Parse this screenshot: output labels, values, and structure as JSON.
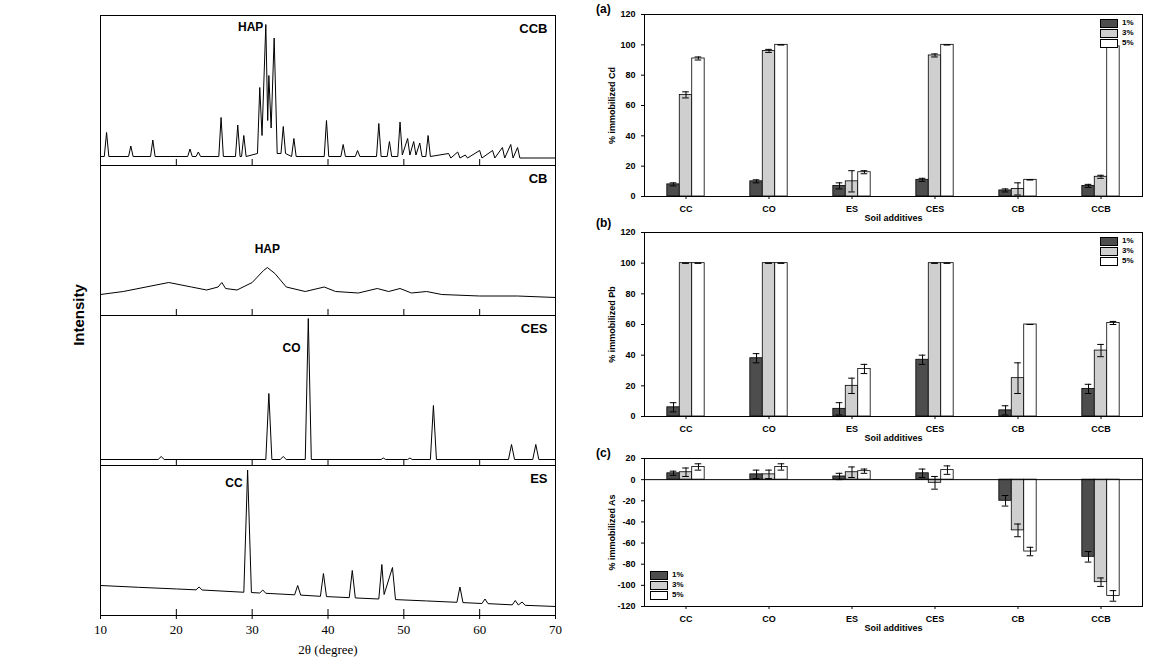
{
  "chart_data": [
    {
      "type": "line",
      "title": "CCB",
      "color": "#000000",
      "x": [
        10,
        10.5,
        10.8,
        11.1,
        13.7,
        14.0,
        14.3,
        16.6,
        16.9,
        17.2,
        21.5,
        21.8,
        22.1,
        22.6,
        22.9,
        23.2,
        25.6,
        25.9,
        26.2,
        27.8,
        28.1,
        28.4,
        28.6,
        28.9,
        29.2,
        30.7,
        31.0,
        31.3,
        31.8,
        32.05,
        32.2,
        32.5,
        32.9,
        33.3,
        33.8,
        34.1,
        34.4,
        35.2,
        35.5,
        35.8,
        39.5,
        39.8,
        40.1,
        41.7,
        42.0,
        42.3,
        43.6,
        43.9,
        44.2,
        46.4,
        46.7,
        47.0,
        47.8,
        48.1,
        48.4,
        49.2,
        49.5,
        49.8,
        50.5,
        50.8,
        51.3,
        51.6,
        52.1,
        52.4,
        52.9,
        53.2,
        53.5,
        55.9,
        56.2,
        57.1,
        57.4,
        58.1,
        58.4,
        60.0,
        60.3,
        61.7,
        62.0,
        63.0,
        63.3,
        64.1,
        64.4,
        65.0,
        65.3,
        70
      ],
      "values": [
        6,
        6,
        22,
        6,
        6,
        13,
        6,
        6,
        17,
        6,
        6,
        11,
        6,
        6,
        9,
        6,
        6,
        32,
        6,
        6,
        27,
        6,
        6,
        20,
        6,
        8,
        52,
        20,
        94,
        30,
        60,
        25,
        85,
        8,
        8,
        26,
        8,
        6,
        18,
        6,
        6,
        30,
        6,
        6,
        14,
        6,
        6,
        10,
        6,
        6,
        28,
        6,
        6,
        16,
        6,
        6,
        29,
        7,
        18,
        7,
        16,
        7,
        15,
        6,
        6,
        20,
        6,
        8,
        5,
        9,
        5,
        7,
        5,
        10,
        5,
        10,
        5,
        12,
        5,
        14,
        5,
        12,
        5,
        5
      ],
      "xlim": [
        10,
        70
      ],
      "ylim": [
        0,
        100
      ],
      "xticks": [
        10,
        20,
        30,
        40,
        50,
        60,
        70
      ],
      "tick_labels": false,
      "annotations": [
        {
          "text": "HAP",
          "x": 29.8,
          "y": 92
        }
      ]
    },
    {
      "type": "line",
      "title": "CB",
      "color": "#000000",
      "x": [
        10,
        13,
        16,
        19,
        22,
        24,
        25.5,
        26,
        26.5,
        28,
        30,
        31.5,
        32,
        33,
        34.5,
        37,
        39.5,
        41,
        44,
        46.5,
        48,
        49.5,
        51,
        53,
        55,
        60,
        65,
        70
      ],
      "values": [
        14,
        16,
        19,
        22,
        19,
        17,
        19,
        22,
        18,
        17,
        22,
        30,
        32,
        28,
        19,
        16,
        19,
        16,
        15,
        18,
        16,
        18,
        15,
        16,
        14,
        13,
        13,
        12
      ],
      "xlim": [
        10,
        70
      ],
      "ylim": [
        0,
        100
      ],
      "xticks": [
        10,
        20,
        30,
        40,
        50,
        60,
        70
      ],
      "tick_labels": false,
      "annotations": [
        {
          "text": "HAP",
          "x": 32,
          "y": 44
        }
      ]
    },
    {
      "type": "line",
      "title": "CES",
      "color": "#000000",
      "x": [
        10,
        17.6,
        18.0,
        18.4,
        31.8,
        32.2,
        32.6,
        33.7,
        34.1,
        34.5,
        37.0,
        37.4,
        37.8,
        47,
        47.3,
        47.6,
        50.5,
        50.8,
        51.1,
        53.5,
        53.9,
        54.3,
        63.8,
        64.2,
        64.6,
        67.0,
        67.4,
        67.8,
        70
      ],
      "values": [
        4,
        4,
        6,
        4,
        4,
        48,
        4,
        4,
        6,
        4,
        4,
        98,
        4,
        4,
        5,
        4,
        4,
        5,
        4,
        4,
        40,
        4,
        4,
        14,
        4,
        4,
        14,
        4,
        4
      ],
      "xlim": [
        10,
        70
      ],
      "ylim": [
        0,
        100
      ],
      "xticks": [
        10,
        20,
        30,
        40,
        50,
        60,
        70
      ],
      "tick_labels": false,
      "annotations": [
        {
          "text": "CO",
          "x": 35.2,
          "y": 78
        }
      ]
    },
    {
      "type": "line",
      "title": "ES",
      "color": "#000000",
      "x": [
        10,
        15,
        20,
        22.6,
        23.0,
        23.4,
        28.9,
        29.4,
        29.9,
        31.0,
        31.4,
        31.8,
        35.6,
        36.0,
        36.4,
        39.0,
        39.4,
        39.8,
        42.8,
        43.2,
        43.6,
        46.7,
        47.1,
        47.4,
        48.5,
        48.9,
        53,
        57.0,
        57.4,
        57.8,
        60.3,
        60.7,
        61.1,
        64.3,
        64.7,
        65.1,
        65.6,
        66,
        70
      ],
      "values": [
        20,
        18.8,
        17.7,
        17.1,
        19,
        17,
        15.5,
        97,
        15.3,
        15,
        17,
        14.8,
        13.8,
        20,
        13.6,
        12.8,
        28,
        12.6,
        11.9,
        30,
        11.7,
        11,
        34,
        14,
        32,
        10.6,
        9.7,
        8.8,
        19,
        8.6,
        8,
        11,
        7.9,
        7.1,
        10,
        7,
        9,
        6.8,
        6
      ],
      "xlim": [
        10,
        70
      ],
      "ylim": [
        0,
        100
      ],
      "xticks": [
        10,
        20,
        30,
        40,
        50,
        60,
        70
      ],
      "tick_labels": "x",
      "xlabel": "2θ (degree)",
      "ylabel": "Intensity",
      "annotations": [
        {
          "text": "CC",
          "x": 27.6,
          "y": 88
        }
      ]
    },
    {
      "type": "bar",
      "title": "(a)",
      "xlabel": "Soil additives",
      "ylabel": "% immobilized Cd",
      "categories": [
        "CC",
        "CO",
        "ES",
        "CES",
        "CB",
        "CCB"
      ],
      "series": [
        {
          "name": "1%",
          "color": "#4d4d4d",
          "values": [
            8,
            10,
            7,
            11,
            4,
            7
          ],
          "errors": [
            1,
            1,
            2,
            1,
            1,
            1
          ]
        },
        {
          "name": "3%",
          "color": "#cfcfcf",
          "values": [
            67,
            96,
            10,
            93,
            5,
            13
          ],
          "errors": [
            2,
            1,
            7,
            1,
            4,
            1
          ]
        },
        {
          "name": "5%",
          "color": "#ffffff",
          "values": [
            91,
            100,
            16,
            100,
            11,
            99
          ],
          "errors": [
            1,
            0,
            1,
            0,
            0,
            0
          ]
        }
      ],
      "ylim": [
        0,
        120
      ],
      "yticks": [
        0,
        20,
        40,
        60,
        80,
        100,
        120
      ],
      "legend": "upper right"
    },
    {
      "type": "bar",
      "title": "(b)",
      "xlabel": "Soil additives",
      "ylabel": "% immobilized Pb",
      "categories": [
        "CC",
        "CO",
        "ES",
        "CES",
        "CB",
        "CCB"
      ],
      "series": [
        {
          "name": "1%",
          "color": "#4d4d4d",
          "values": [
            6,
            38,
            5,
            37,
            4,
            18
          ],
          "errors": [
            3,
            3,
            4,
            3,
            3,
            3
          ]
        },
        {
          "name": "3%",
          "color": "#cfcfcf",
          "values": [
            100,
            100,
            20,
            100,
            25,
            43
          ],
          "errors": [
            0,
            0,
            5,
            0,
            10,
            4
          ]
        },
        {
          "name": "5%",
          "color": "#ffffff",
          "values": [
            100,
            100,
            31,
            100,
            60,
            61
          ],
          "errors": [
            0,
            0,
            3,
            0,
            0,
            1
          ]
        }
      ],
      "ylim": [
        0,
        120
      ],
      "yticks": [
        0,
        20,
        40,
        60,
        80,
        100,
        120
      ],
      "legend": "upper right"
    },
    {
      "type": "bar",
      "title": "(c)",
      "xlabel": "Soil additives",
      "ylabel": "% immobilized As",
      "categories": [
        "CC",
        "CO",
        "ES",
        "CES",
        "CB",
        "CCB"
      ],
      "series": [
        {
          "name": "1%",
          "color": "#4d4d4d",
          "values": [
            6,
            5,
            3,
            6,
            -20,
            -73
          ],
          "errors": [
            2,
            4,
            3,
            4,
            5,
            5
          ]
        },
        {
          "name": "3%",
          "color": "#cfcfcf",
          "values": [
            7,
            5,
            7,
            -3,
            -48,
            -97
          ],
          "errors": [
            4,
            4,
            5,
            6,
            6,
            4
          ]
        },
        {
          "name": "5%",
          "color": "#ffffff",
          "values": [
            12,
            12,
            8,
            9,
            -68,
            -110
          ],
          "errors": [
            3,
            3,
            2,
            4,
            4,
            5
          ]
        }
      ],
      "ylim": [
        -120,
        20
      ],
      "yticks": [
        -120,
        -100,
        -80,
        -60,
        -40,
        -20,
        0,
        20
      ],
      "legend": "lower left"
    }
  ]
}
